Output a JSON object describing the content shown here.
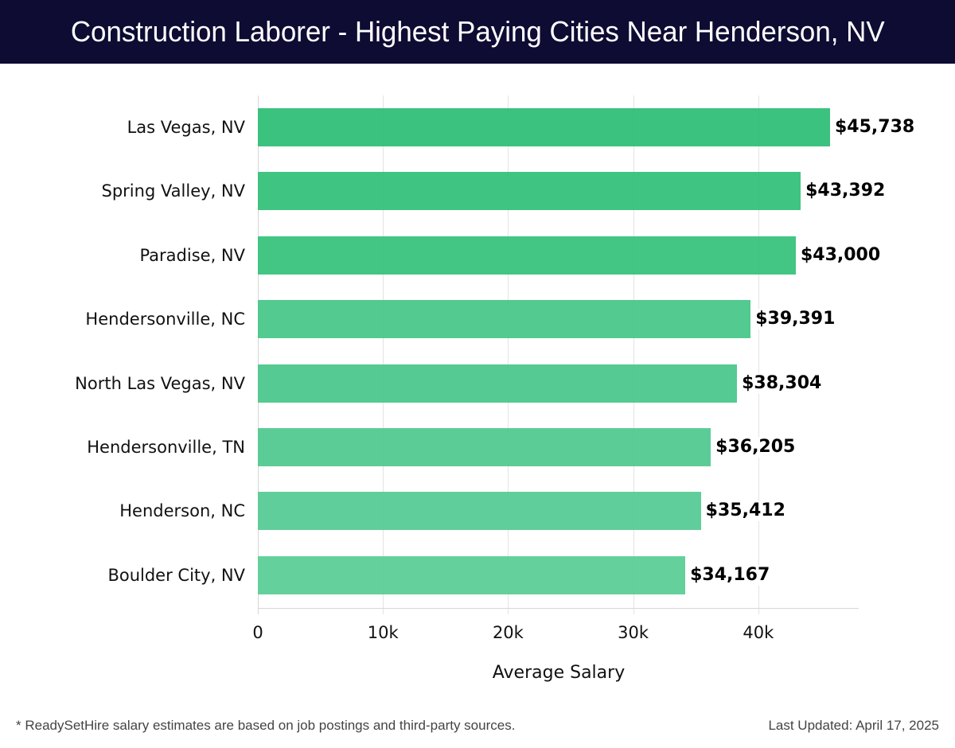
{
  "header": {
    "title": "Construction Laborer - Highest Paying Cities Near Henderson, NV"
  },
  "footer": {
    "note": "* ReadySetHire salary estimates are based on job postings and third-party sources.",
    "updated": "Last Updated: April 17, 2025"
  },
  "chart_data": {
    "type": "bar",
    "orientation": "horizontal",
    "title": "Construction Laborer - Highest Paying Cities Near Henderson, NV",
    "xlabel": "Average Salary",
    "ylabel": "",
    "xlim": [
      0,
      48000
    ],
    "grid": true,
    "categories": [
      "Las Vegas, NV",
      "Spring Valley, NV",
      "Paradise, NV",
      "Hendersonville, NC",
      "North Las Vegas, NV",
      "Hendersonville, TN",
      "Henderson, NC",
      "Boulder City, NV"
    ],
    "values": [
      45738,
      43392,
      43000,
      39391,
      38304,
      36205,
      35412,
      34167
    ],
    "value_labels": [
      "$45,738",
      "$43,392",
      "$43,000",
      "$39,391",
      "$38,304",
      "$36,205",
      "$35,412",
      "$34,167"
    ],
    "colors": [
      "#2bbd74",
      "#2fbf77",
      "#33c17a",
      "#43c587",
      "#46c589",
      "#4ec88e",
      "#52ca91",
      "#57cc94"
    ],
    "x_ticks": [
      {
        "value": 0,
        "label": "0"
      },
      {
        "value": 10000,
        "label": "10k"
      },
      {
        "value": 20000,
        "label": "20k"
      },
      {
        "value": 30000,
        "label": "30k"
      },
      {
        "value": 40000,
        "label": "40k"
      }
    ]
  }
}
